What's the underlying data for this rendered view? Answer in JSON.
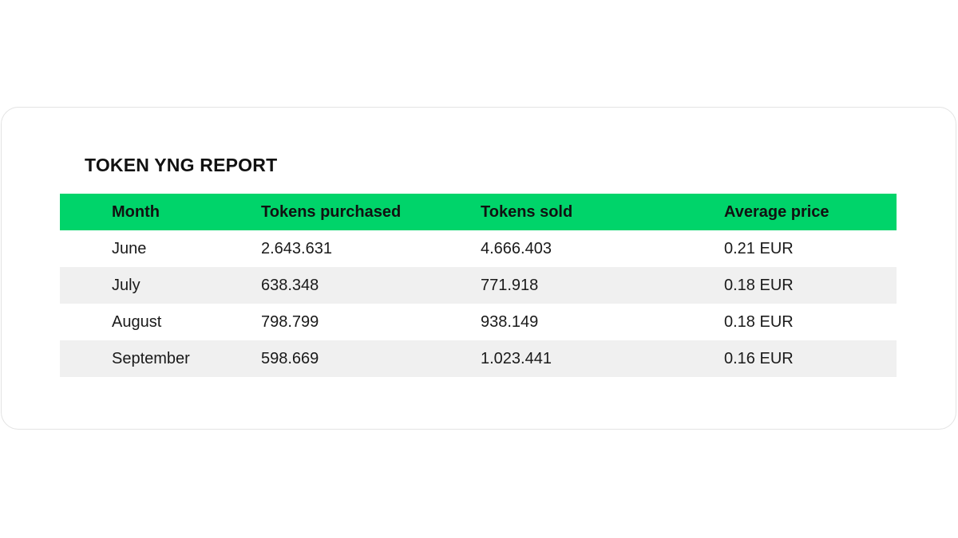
{
  "report": {
    "title": "TOKEN YNG REPORT",
    "columns": [
      "Month",
      "Tokens purchased",
      "Tokens sold",
      "Average price"
    ],
    "rows": [
      {
        "month": "June",
        "purchased": "2.643.631",
        "sold": "4.666.403",
        "price": "0.21 EUR"
      },
      {
        "month": "July",
        "purchased": "638.348",
        "sold": "771.918",
        "price": "0.18 EUR"
      },
      {
        "month": "August",
        "purchased": "798.799",
        "sold": "938.149",
        "price": "0.18 EUR"
      },
      {
        "month": "September",
        "purchased": "598.669",
        "sold": "1.023.441",
        "price": "0.16 EUR"
      }
    ]
  },
  "colors": {
    "header_background": "#00d46a",
    "striped_row_background": "#f0f0f0",
    "card_border": "#e3e3e3"
  }
}
